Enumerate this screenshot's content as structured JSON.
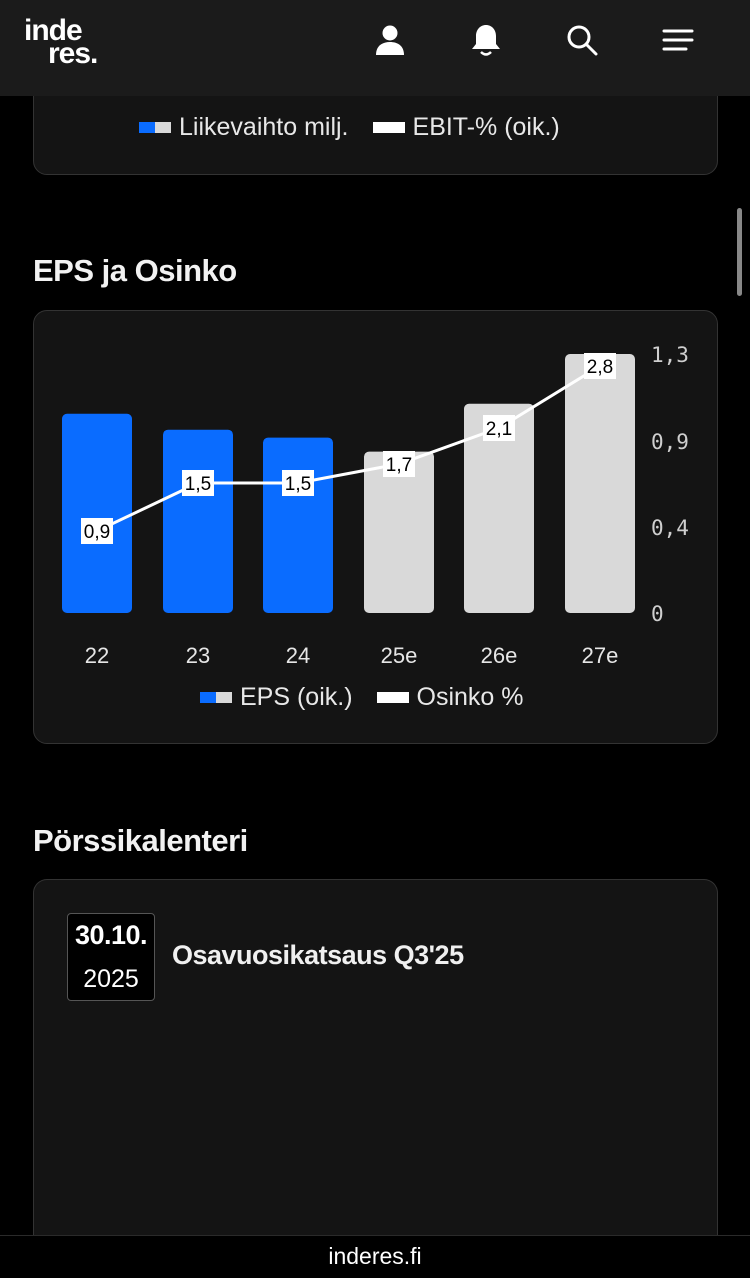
{
  "header": {
    "logo_line1": "inde",
    "logo_line2": "res.",
    "icons": [
      "user-icon",
      "bell-icon",
      "search-icon",
      "menu-icon"
    ]
  },
  "revenue_card": {
    "legend": [
      {
        "label": "Liikevaihto milj.",
        "swatch": "split"
      },
      {
        "label": "EBIT-% (oik.)",
        "swatch": "white"
      }
    ]
  },
  "eps_section": {
    "title": "EPS ja Osinko",
    "legend": [
      {
        "label": "EPS (oik.)",
        "swatch": "split"
      },
      {
        "label": "Osinko %",
        "swatch": "white"
      }
    ]
  },
  "chart_data": {
    "type": "bar",
    "categories": [
      "22",
      "23",
      "24",
      "25e",
      "26e",
      "27e"
    ],
    "series": [
      {
        "name": "EPS (oik.)",
        "type": "bar",
        "axis": "right",
        "values": [
          1.0,
          0.92,
          0.88,
          0.81,
          1.05,
          1.3
        ],
        "estimate": [
          false,
          false,
          false,
          true,
          true,
          true
        ]
      },
      {
        "name": "Osinko %",
        "type": "line",
        "values": [
          0.9,
          1.5,
          1.5,
          1.7,
          2.1,
          2.8
        ],
        "labels": [
          "0,9",
          "1,5",
          "1,5",
          "1,7",
          "2,1",
          "2,8"
        ]
      }
    ],
    "y_right_ticks": [
      "1,3",
      "0,9",
      "0,4",
      "0"
    ],
    "ylim": [
      0,
      1.3
    ],
    "colors": {
      "actual": "#0a6cff",
      "estimate": "#d9d9d9",
      "line": "#ffffff"
    }
  },
  "calendar": {
    "title": "Pörssikalenteri",
    "events": [
      {
        "date": "30.10.",
        "year": "2025",
        "title": "Osavuosikatsaus Q3'25"
      }
    ]
  },
  "footer": {
    "url": "inderes.fi"
  }
}
